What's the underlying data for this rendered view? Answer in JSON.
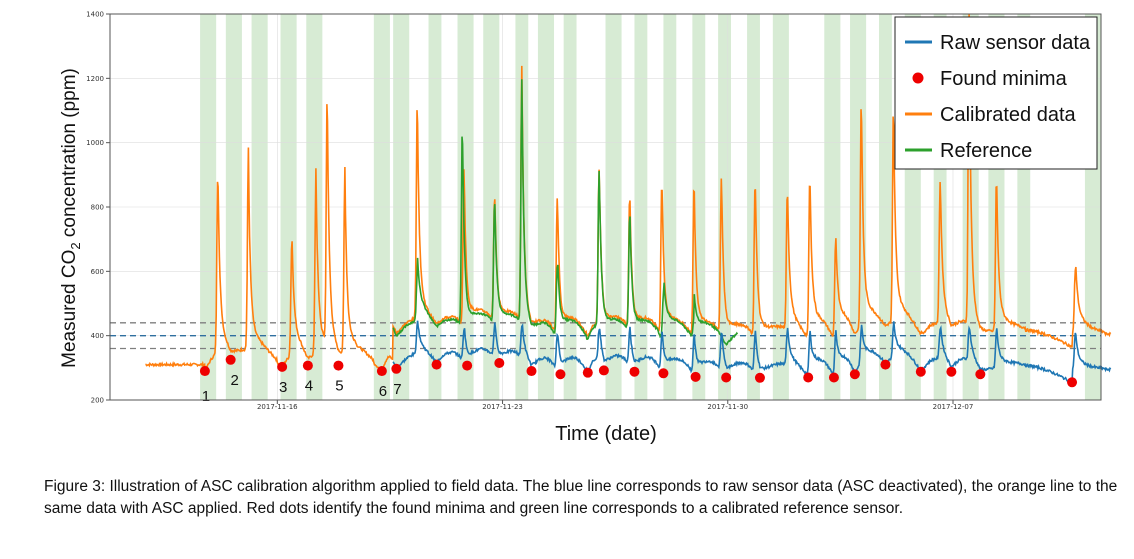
{
  "chart_data": {
    "type": "line",
    "xlabel": "Time (date)",
    "ylabel_parts": [
      "Measured CO",
      "2",
      " concentration (ppm)"
    ],
    "ylim": [
      200,
      1400
    ],
    "yticks": [
      "200",
      "400",
      "600",
      "800",
      "1000",
      "1200",
      "1400"
    ],
    "ytick_values": [
      200,
      400,
      600,
      800,
      1000,
      1200,
      1400
    ],
    "xlim": [
      -5.2,
      25.6
    ],
    "xticks": [
      "2017-11-16",
      "2017-11-23",
      "2017-11-30",
      "2017-12-07"
    ],
    "xtick_values": [
      0,
      7,
      14,
      21
    ],
    "reference_lines": [
      {
        "value": 440,
        "color": "#7f7f7f",
        "style": "dashed"
      },
      {
        "value": 400,
        "color": "#2f6f9f",
        "style": "dashed"
      },
      {
        "value": 360,
        "color": "#7f7f7f",
        "style": "dashed"
      }
    ],
    "shaded_bands": [
      [
        -2.4,
        -1.9
      ],
      [
        -1.6,
        -1.1
      ],
      [
        -0.8,
        -0.3
      ],
      [
        0.1,
        0.6
      ],
      [
        0.9,
        1.4
      ],
      [
        3.0,
        3.5
      ],
      [
        3.6,
        4.1
      ],
      [
        4.7,
        5.1
      ],
      [
        5.6,
        6.1
      ],
      [
        6.4,
        6.9
      ],
      [
        7.4,
        7.8
      ],
      [
        8.1,
        8.6
      ],
      [
        8.9,
        9.3
      ],
      [
        10.2,
        10.7
      ],
      [
        11.1,
        11.5
      ],
      [
        12.0,
        12.4
      ],
      [
        12.9,
        13.3
      ],
      [
        13.7,
        14.1
      ],
      [
        14.6,
        15.0
      ],
      [
        15.4,
        15.9
      ],
      [
        17.0,
        17.5
      ],
      [
        17.8,
        18.3
      ],
      [
        18.7,
        19.1
      ],
      [
        19.5,
        20.0
      ],
      [
        20.4,
        20.8
      ],
      [
        21.3,
        21.8
      ],
      [
        22.1,
        22.6
      ],
      [
        23.0,
        23.4
      ],
      [
        25.1,
        25.6
      ]
    ],
    "minima": [
      {
        "x": -2.25,
        "y": 290,
        "label": "1"
      },
      {
        "x": -1.45,
        "y": 325,
        "label": "2"
      },
      {
        "x": 0.15,
        "y": 303,
        "label": "3"
      },
      {
        "x": 0.95,
        "y": 307,
        "label": "4"
      },
      {
        "x": 1.9,
        "y": 307,
        "label": "5"
      },
      {
        "x": 3.25,
        "y": 290,
        "label": "6"
      },
      {
        "x": 3.7,
        "y": 297,
        "label": "7"
      },
      {
        "x": 4.95,
        "y": 310,
        "label": ""
      },
      {
        "x": 5.9,
        "y": 307,
        "label": ""
      },
      {
        "x": 6.9,
        "y": 315,
        "label": ""
      },
      {
        "x": 7.9,
        "y": 290,
        "label": ""
      },
      {
        "x": 8.8,
        "y": 280,
        "label": ""
      },
      {
        "x": 9.65,
        "y": 285,
        "label": ""
      },
      {
        "x": 10.15,
        "y": 292,
        "label": ""
      },
      {
        "x": 11.1,
        "y": 288,
        "label": ""
      },
      {
        "x": 12.0,
        "y": 283,
        "label": ""
      },
      {
        "x": 13.0,
        "y": 272,
        "label": ""
      },
      {
        "x": 13.95,
        "y": 270,
        "label": ""
      },
      {
        "x": 15.0,
        "y": 269,
        "label": ""
      },
      {
        "x": 16.5,
        "y": 270,
        "label": ""
      },
      {
        "x": 17.3,
        "y": 270,
        "label": ""
      },
      {
        "x": 17.95,
        "y": 280,
        "label": ""
      },
      {
        "x": 18.9,
        "y": 310,
        "label": ""
      },
      {
        "x": 20.0,
        "y": 288,
        "label": ""
      },
      {
        "x": 20.95,
        "y": 288,
        "label": ""
      },
      {
        "x": 21.85,
        "y": 280,
        "label": ""
      },
      {
        "x": 24.7,
        "y": 255,
        "label": ""
      }
    ],
    "orange_spikes": [
      {
        "x": -1.85,
        "y": 915
      },
      {
        "x": -0.9,
        "y": 955
      },
      {
        "x": 0.45,
        "y": 690
      },
      {
        "x": 1.2,
        "y": 875
      },
      {
        "x": 1.55,
        "y": 1135
      },
      {
        "x": 2.1,
        "y": 870
      },
      {
        "x": 4.35,
        "y": 1140
      },
      {
        "x": 5.8,
        "y": 920
      },
      {
        "x": 6.75,
        "y": 830
      },
      {
        "x": 7.6,
        "y": 1230
      },
      {
        "x": 8.7,
        "y": 830
      },
      {
        "x": 10.0,
        "y": 920
      },
      {
        "x": 10.95,
        "y": 830
      },
      {
        "x": 11.95,
        "y": 880
      },
      {
        "x": 12.95,
        "y": 880
      },
      {
        "x": 13.8,
        "y": 880
      },
      {
        "x": 14.85,
        "y": 880
      },
      {
        "x": 15.85,
        "y": 850
      },
      {
        "x": 16.55,
        "y": 880
      },
      {
        "x": 17.35,
        "y": 670
      },
      {
        "x": 18.15,
        "y": 1140
      },
      {
        "x": 19.15,
        "y": 1120
      },
      {
        "x": 20.6,
        "y": 880
      },
      {
        "x": 21.5,
        "y": 1400
      },
      {
        "x": 22.35,
        "y": 880
      },
      {
        "x": 24.8,
        "y": 600
      }
    ],
    "green_spikes": [
      {
        "x": 4.35,
        "y": 600
      },
      {
        "x": 5.75,
        "y": 1065
      },
      {
        "x": 6.75,
        "y": 820
      },
      {
        "x": 7.6,
        "y": 1200
      },
      {
        "x": 8.7,
        "y": 620
      },
      {
        "x": 10.0,
        "y": 920
      },
      {
        "x": 10.95,
        "y": 780
      },
      {
        "x": 12.0,
        "y": 540
      },
      {
        "x": 12.95,
        "y": 470
      }
    ],
    "series": [
      {
        "name": "Raw sensor data",
        "color": "#1f77b4",
        "marker": "line"
      },
      {
        "name": "Found minima",
        "color": "#ee0000",
        "marker": "dot"
      },
      {
        "name": "Calibrated data",
        "color": "#ff7f0e",
        "marker": "line"
      },
      {
        "name": "Reference",
        "color": "#2ca02c",
        "marker": "line"
      }
    ]
  },
  "caption": "Figure 3: Illustration of ASC calibration algorithm applied to field data. The blue line corresponds to raw sensor data (ASC deactivated), the orange line to the same data with ASC applied. Red dots identify the found minima and green line corresponds to a calibrated reference sensor.",
  "colors": {
    "band": "#d7ebd4",
    "grid": "#dddddd",
    "axis": "#555555"
  }
}
